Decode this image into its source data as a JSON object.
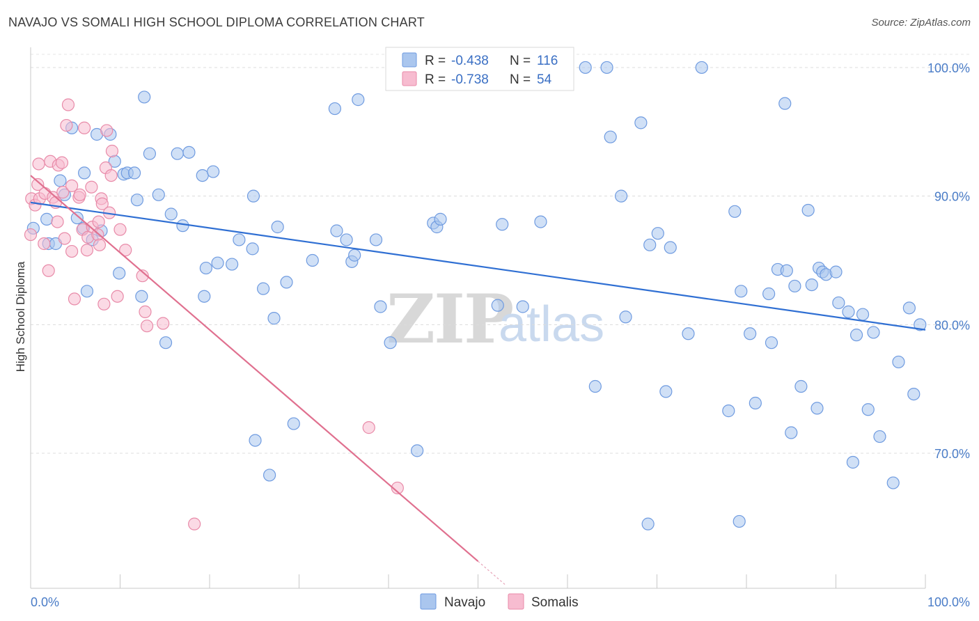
{
  "header": {
    "title": "NAVAJO VS SOMALI HIGH SCHOOL DIPLOMA CORRELATION CHART",
    "source": "Source: ZipAtlas.com"
  },
  "watermark": {
    "zip": "ZIP",
    "atlas": "atlas"
  },
  "legend": {
    "rows": [
      {
        "r_label": "R =",
        "r_value": "-0.438",
        "n_label": "N =",
        "n_value": "116",
        "color": "#aac6ee",
        "stroke": "#6f9be0"
      },
      {
        "r_label": "R =",
        "r_value": "-0.738",
        "n_label": "N =",
        "n_value": "54",
        "color": "#f7bcd0",
        "stroke": "#e88aa8"
      }
    ]
  },
  "bottom_legend": [
    {
      "label": "Navajo",
      "color": "#aac6ee",
      "stroke": "#6f9be0"
    },
    {
      "label": "Somalis",
      "color": "#f7bcd0",
      "stroke": "#e88aa8"
    }
  ],
  "chart_data": {
    "type": "scatter",
    "title": "NAVAJO VS SOMALI HIGH SCHOOL DIPLOMA CORRELATION CHART",
    "xlabel": "",
    "ylabel": "High School Diploma",
    "xlim": [
      0,
      100
    ],
    "ylim": [
      59.5,
      102
    ],
    "x_tick_labels": [
      "0.0%",
      "100.0%"
    ],
    "y_ticks": [
      70,
      80,
      90,
      100
    ],
    "y_tick_labels": [
      "70.0%",
      "80.0%",
      "90.0%",
      "100.0%"
    ],
    "grid": true,
    "series": [
      {
        "name": "Navajo",
        "color": "#aac6ee",
        "stroke": "#6f9be0",
        "trend": {
          "x": [
            0,
            100
          ],
          "y": [
            89.5,
            79.6
          ],
          "color": "#2f6fd3"
        },
        "points": [
          [
            0.3,
            87.5
          ],
          [
            1.8,
            88.2
          ],
          [
            2.0,
            86.3
          ],
          [
            2.8,
            86.3
          ],
          [
            3.3,
            91.2
          ],
          [
            3.8,
            90.1
          ],
          [
            4.6,
            95.3
          ],
          [
            5.2,
            88.3
          ],
          [
            5.9,
            87.5
          ],
          [
            6.0,
            91.8
          ],
          [
            6.3,
            82.6
          ],
          [
            6.9,
            86.6
          ],
          [
            7.4,
            94.8
          ],
          [
            7.9,
            87.3
          ],
          [
            8.9,
            94.8
          ],
          [
            9.4,
            92.7
          ],
          [
            9.9,
            84.0
          ],
          [
            10.4,
            91.7
          ],
          [
            10.8,
            91.8
          ],
          [
            11.6,
            91.8
          ],
          [
            11.9,
            89.7
          ],
          [
            12.4,
            82.2
          ],
          [
            12.7,
            97.7
          ],
          [
            13.3,
            93.3
          ],
          [
            14.3,
            90.1
          ],
          [
            15.1,
            78.6
          ],
          [
            15.7,
            88.6
          ],
          [
            16.4,
            93.3
          ],
          [
            17.0,
            87.7
          ],
          [
            17.7,
            93.4
          ],
          [
            19.2,
            91.6
          ],
          [
            19.4,
            82.2
          ],
          [
            19.6,
            84.4
          ],
          [
            20.4,
            91.9
          ],
          [
            20.9,
            84.8
          ],
          [
            22.5,
            84.7
          ],
          [
            23.3,
            86.6
          ],
          [
            24.8,
            85.9
          ],
          [
            24.9,
            90.0
          ],
          [
            25.1,
            71.0
          ],
          [
            26.0,
            82.8
          ],
          [
            26.7,
            68.3
          ],
          [
            27.2,
            80.5
          ],
          [
            27.6,
            87.6
          ],
          [
            28.6,
            83.3
          ],
          [
            29.4,
            72.3
          ],
          [
            31.5,
            85.0
          ],
          [
            34.0,
            96.8
          ],
          [
            34.2,
            87.3
          ],
          [
            35.3,
            86.6
          ],
          [
            35.9,
            84.9
          ],
          [
            36.2,
            85.4
          ],
          [
            36.6,
            97.5
          ],
          [
            38.6,
            86.6
          ],
          [
            39.1,
            81.4
          ],
          [
            40.2,
            78.6
          ],
          [
            43.2,
            70.2
          ],
          [
            45.0,
            87.9
          ],
          [
            45.4,
            87.6
          ],
          [
            45.8,
            88.2
          ],
          [
            52.2,
            81.5
          ],
          [
            52.7,
            87.8
          ],
          [
            55.0,
            81.4
          ],
          [
            57.0,
            88.0
          ],
          [
            62.0,
            100.0
          ],
          [
            63.1,
            75.2
          ],
          [
            64.4,
            100.0
          ],
          [
            64.8,
            94.6
          ],
          [
            66.0,
            90.0
          ],
          [
            66.5,
            80.6
          ],
          [
            68.2,
            95.7
          ],
          [
            69.0,
            64.5
          ],
          [
            69.2,
            86.2
          ],
          [
            70.1,
            87.1
          ],
          [
            71.0,
            74.8
          ],
          [
            71.5,
            86.0
          ],
          [
            73.5,
            79.3
          ],
          [
            75.0,
            100.0
          ],
          [
            78.0,
            73.3
          ],
          [
            78.7,
            88.8
          ],
          [
            79.2,
            64.7
          ],
          [
            79.4,
            82.6
          ],
          [
            80.4,
            79.3
          ],
          [
            81.0,
            73.9
          ],
          [
            82.5,
            82.4
          ],
          [
            82.8,
            78.6
          ],
          [
            83.5,
            84.3
          ],
          [
            84.3,
            97.2
          ],
          [
            84.5,
            84.2
          ],
          [
            85.0,
            71.6
          ],
          [
            85.4,
            83.0
          ],
          [
            86.1,
            75.2
          ],
          [
            86.9,
            88.9
          ],
          [
            87.3,
            83.1
          ],
          [
            87.9,
            73.5
          ],
          [
            88.1,
            84.4
          ],
          [
            88.5,
            84.1
          ],
          [
            88.9,
            83.9
          ],
          [
            90.0,
            84.1
          ],
          [
            90.3,
            81.7
          ],
          [
            91.4,
            81.0
          ],
          [
            91.9,
            69.3
          ],
          [
            92.3,
            79.2
          ],
          [
            93.0,
            80.8
          ],
          [
            93.6,
            73.4
          ],
          [
            94.2,
            79.4
          ],
          [
            94.9,
            71.3
          ],
          [
            96.4,
            67.7
          ],
          [
            97.0,
            77.1
          ],
          [
            98.2,
            81.3
          ],
          [
            98.7,
            74.6
          ],
          [
            99.4,
            80.0
          ]
        ]
      },
      {
        "name": "Somalis",
        "color": "#f7bcd0",
        "stroke": "#e88aa8",
        "trend": {
          "x": [
            0,
            50
          ],
          "y": [
            91.6,
            61.6
          ],
          "color": "#e0708f"
        },
        "points": [
          [
            0.0,
            87.0
          ],
          [
            0.1,
            89.8
          ],
          [
            0.5,
            89.3
          ],
          [
            0.8,
            90.9
          ],
          [
            0.9,
            92.5
          ],
          [
            1.0,
            89.8
          ],
          [
            1.5,
            86.3
          ],
          [
            1.6,
            90.2
          ],
          [
            2.0,
            84.2
          ],
          [
            2.2,
            92.7
          ],
          [
            2.5,
            89.9
          ],
          [
            2.8,
            89.5
          ],
          [
            3.0,
            88.0
          ],
          [
            3.1,
            92.4
          ],
          [
            3.5,
            92.6
          ],
          [
            3.6,
            90.3
          ],
          [
            3.8,
            86.7
          ],
          [
            4.0,
            95.5
          ],
          [
            4.2,
            97.1
          ],
          [
            4.6,
            90.8
          ],
          [
            4.6,
            85.7
          ],
          [
            4.9,
            82.0
          ],
          [
            5.4,
            89.9
          ],
          [
            5.5,
            90.1
          ],
          [
            5.8,
            87.4
          ],
          [
            6.0,
            95.3
          ],
          [
            6.3,
            85.8
          ],
          [
            6.4,
            86.8
          ],
          [
            6.8,
            90.7
          ],
          [
            6.9,
            87.6
          ],
          [
            7.5,
            87.0
          ],
          [
            7.6,
            88.0
          ],
          [
            7.7,
            86.2
          ],
          [
            7.9,
            89.8
          ],
          [
            8.0,
            89.4
          ],
          [
            8.2,
            81.6
          ],
          [
            8.4,
            92.2
          ],
          [
            8.5,
            95.1
          ],
          [
            8.8,
            88.7
          ],
          [
            9.0,
            91.6
          ],
          [
            9.1,
            93.5
          ],
          [
            9.7,
            82.2
          ],
          [
            10.0,
            87.4
          ],
          [
            10.6,
            85.8
          ],
          [
            12.5,
            83.8
          ],
          [
            12.8,
            81.0
          ],
          [
            13.0,
            79.9
          ],
          [
            14.8,
            80.1
          ],
          [
            18.3,
            64.5
          ],
          [
            37.8,
            72.0
          ],
          [
            41.0,
            67.3
          ]
        ]
      }
    ]
  }
}
